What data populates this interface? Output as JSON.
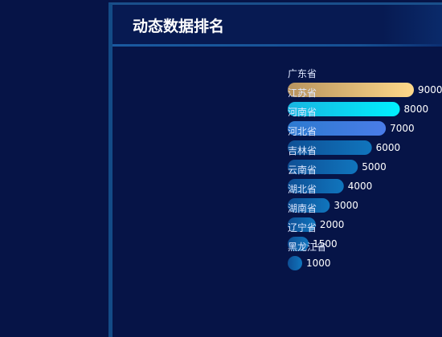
{
  "panel": {
    "title": "动态数据排名"
  },
  "chart_data": {
    "type": "bar",
    "orientation": "horizontal",
    "title": "动态数据排名",
    "categories": [
      "广东省",
      "江苏省",
      "河南省",
      "河北省",
      "吉林省",
      "云南省",
      "湖北省",
      "湖南省",
      "辽宁省",
      "黑龙江省"
    ],
    "values": [
      9000,
      8000,
      7000,
      6000,
      5000,
      4000,
      3000,
      2000,
      1500,
      1000
    ],
    "xlim": [
      0,
      9000
    ],
    "grid": false,
    "legend": "none",
    "colors": {
      "first_gradient": [
        "#b8935e",
        "#ffd98a"
      ],
      "second_gradient": [
        "#18b5e0",
        "#00f0ff"
      ],
      "third_gradient": [
        "#2d7ad0",
        "#4a7ce8"
      ],
      "others": [
        "#0e4f95",
        "#1075bd"
      ],
      "category_text": "#dfe8ff",
      "value_text": "#ffffff",
      "background": "#061447"
    }
  }
}
